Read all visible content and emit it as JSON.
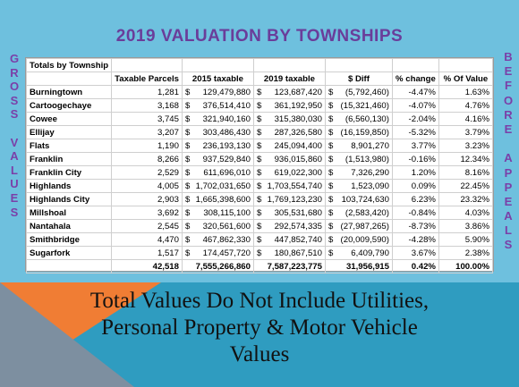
{
  "title": "2019 VALUATION BY TOWNSHIPS",
  "side_left": [
    "G",
    "R",
    "O",
    "S",
    "S",
    "",
    "V",
    "A",
    "L",
    "U",
    "E",
    "S"
  ],
  "side_right": [
    "B",
    "E",
    "F",
    "O",
    "R",
    "E",
    "",
    "A",
    "P",
    "P",
    "E",
    "A",
    "L",
    "S"
  ],
  "table": {
    "corner_label": "Totals by Township",
    "headers": [
      "",
      "Taxable Parcels",
      "2015 taxable",
      "2019 taxable",
      "$ Diff",
      "% change",
      "% Of  Value"
    ],
    "rows": [
      {
        "name": "Burningtown",
        "parcels": "1,281",
        "t2015": "129,479,880",
        "t2019": "123,687,420",
        "diff": "(5,792,460)",
        "change": "-4.47%",
        "pct": "1.63%"
      },
      {
        "name": "Cartoogechaye",
        "parcels": "3,168",
        "t2015": "376,514,410",
        "t2019": "361,192,950",
        "diff": "(15,321,460)",
        "change": "-4.07%",
        "pct": "4.76%"
      },
      {
        "name": "Cowee",
        "parcels": "3,745",
        "t2015": "321,940,160",
        "t2019": "315,380,030",
        "diff": "(6,560,130)",
        "change": "-2.04%",
        "pct": "4.16%"
      },
      {
        "name": "Ellijay",
        "parcels": "3,207",
        "t2015": "303,486,430",
        "t2019": "287,326,580",
        "diff": "(16,159,850)",
        "change": "-5.32%",
        "pct": "3.79%"
      },
      {
        "name": "Flats",
        "parcels": "1,190",
        "t2015": "236,193,130",
        "t2019": "245,094,400",
        "diff": "8,901,270",
        "change": "3.77%",
        "pct": "3.23%"
      },
      {
        "name": "Franklin",
        "parcels": "8,266",
        "t2015": "937,529,840",
        "t2019": "936,015,860",
        "diff": "(1,513,980)",
        "change": "-0.16%",
        "pct": "12.34%"
      },
      {
        "name": "Franklin City",
        "parcels": "2,529",
        "t2015": "611,696,010",
        "t2019": "619,022,300",
        "diff": "7,326,290",
        "change": "1.20%",
        "pct": "8.16%"
      },
      {
        "name": "Highlands",
        "parcels": "4,005",
        "t2015": "1,702,031,650",
        "t2019": "1,703,554,740",
        "diff": "1,523,090",
        "change": "0.09%",
        "pct": "22.45%"
      },
      {
        "name": "Highlands City",
        "parcels": "2,903",
        "t2015": "1,665,398,600",
        "t2019": "1,769,123,230",
        "diff": "103,724,630",
        "change": "6.23%",
        "pct": "23.32%"
      },
      {
        "name": "Millshoal",
        "parcels": "3,692",
        "t2015": "308,115,100",
        "t2019": "305,531,680",
        "diff": "(2,583,420)",
        "change": "-0.84%",
        "pct": "4.03%"
      },
      {
        "name": "Nantahala",
        "parcels": "2,545",
        "t2015": "320,561,600",
        "t2019": "292,574,335",
        "diff": "(27,987,265)",
        "change": "-8.73%",
        "pct": "3.86%"
      },
      {
        "name": "Smithbridge",
        "parcels": "4,470",
        "t2015": "467,862,330",
        "t2019": "447,852,740",
        "diff": "(20,009,590)",
        "change": "-4.28%",
        "pct": "5.90%"
      },
      {
        "name": "Sugarfork",
        "parcels": "1,517",
        "t2015": "174,457,720",
        "t2019": "180,867,510",
        "diff": "6,409,790",
        "change": "3.67%",
        "pct": "2.38%"
      }
    ],
    "totals": {
      "parcels": "42,518",
      "t2015": "7,555,266,860",
      "t2019": "7,587,223,775",
      "diff": "31,956,915",
      "change": "0.42%",
      "pct": "100.00%"
    },
    "currency": "$"
  },
  "footer": {
    "line1": "Total Values Do Not Include Utilities,",
    "line2": "Personal Property & Motor Vehicle",
    "line3": "Values"
  },
  "colors": {
    "background": "#6ec0de",
    "title": "#6a3d9a",
    "side_text": "#7b3fa8",
    "bottom_band": "#2f9cc0",
    "orange_accent": "#f07d34",
    "grey_accent": "#7d8fa0"
  }
}
